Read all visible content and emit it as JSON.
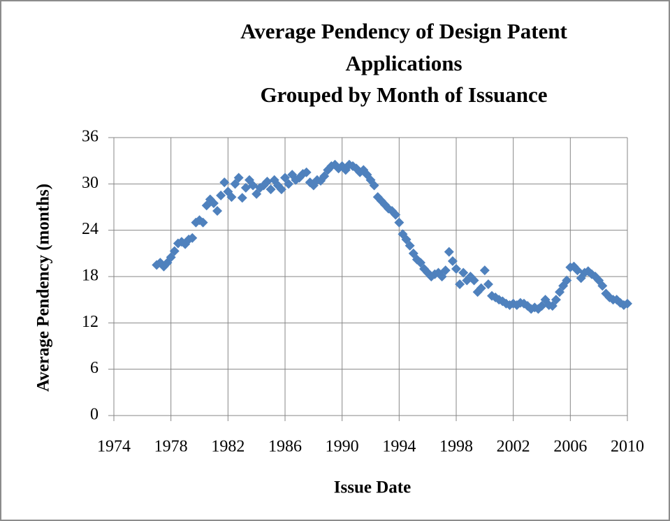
{
  "chart_data": {
    "type": "scatter",
    "title": [
      "Average Pendency of Design Patent",
      "Applications",
      "Grouped by Month of Issuance"
    ],
    "xlabel": "Issue Date",
    "ylabel": "Average Pendency  (months)",
    "color": "#4f81bd",
    "grid": true,
    "xlim": [
      1974,
      2010
    ],
    "xticks": [
      1974,
      1978,
      1982,
      1986,
      1990,
      1994,
      1998,
      2002,
      2006,
      2010
    ],
    "ylim": [
      0,
      36
    ],
    "yticks": [
      0,
      6,
      12,
      18,
      24,
      30,
      36
    ],
    "x": [
      1977.0,
      1977.25,
      1977.5,
      1977.75,
      1978.0,
      1978.25,
      1978.5,
      1978.75,
      1979.0,
      1979.25,
      1979.5,
      1979.75,
      1980.0,
      1980.25,
      1980.5,
      1980.75,
      1981.0,
      1981.25,
      1981.5,
      1981.75,
      1982.0,
      1982.25,
      1982.5,
      1982.75,
      1983.0,
      1983.25,
      1983.5,
      1983.75,
      1984.0,
      1984.25,
      1984.5,
      1984.75,
      1985.0,
      1985.25,
      1985.5,
      1985.75,
      1986.0,
      1986.25,
      1986.5,
      1986.75,
      1987.0,
      1987.25,
      1987.5,
      1987.75,
      1988.0,
      1988.25,
      1988.5,
      1988.75,
      1989.0,
      1989.25,
      1989.5,
      1989.75,
      1990.0,
      1990.25,
      1990.5,
      1990.75,
      1991.0,
      1991.25,
      1991.5,
      1991.75,
      1992.0,
      1992.25,
      1992.5,
      1992.75,
      1993.0,
      1993.25,
      1993.5,
      1993.75,
      1994.0,
      1994.25,
      1994.5,
      1994.75,
      1995.0,
      1995.25,
      1995.5,
      1995.75,
      1996.0,
      1996.25,
      1996.5,
      1996.75,
      1997.0,
      1997.25,
      1997.5,
      1997.75,
      1998.0,
      1998.25,
      1998.5,
      1998.75,
      1999.0,
      1999.25,
      1999.5,
      1999.75,
      2000.0,
      2000.25,
      2000.5,
      2000.75,
      2001.0,
      2001.25,
      2001.5,
      2001.75,
      2002.0,
      2002.25,
      2002.5,
      2002.75,
      2003.0,
      2003.25,
      2003.5,
      2003.75,
      2004.0,
      2004.25,
      2004.5,
      2004.75,
      2005.0,
      2005.25,
      2005.5,
      2005.75,
      2006.0,
      2006.25,
      2006.5,
      2006.75,
      2007.0,
      2007.25,
      2007.5,
      2007.75,
      2008.0,
      2008.25,
      2008.5,
      2008.75,
      2009.0,
      2009.25,
      2009.5,
      2009.75,
      2010.0
    ],
    "values": [
      19.5,
      19.8,
      19.3,
      19.8,
      20.5,
      21.3,
      22.3,
      22.5,
      22.2,
      22.8,
      23.0,
      25.0,
      25.3,
      25.0,
      27.2,
      28.0,
      27.5,
      26.5,
      28.5,
      30.2,
      29.0,
      28.3,
      30.0,
      30.8,
      28.2,
      29.5,
      30.5,
      29.8,
      28.7,
      29.5,
      29.8,
      30.3,
      29.3,
      30.5,
      29.8,
      29.3,
      30.8,
      30.0,
      31.2,
      30.5,
      30.8,
      31.3,
      31.5,
      30.2,
      29.8,
      30.5,
      30.4,
      31.0,
      31.8,
      32.3,
      32.5,
      32.0,
      32.3,
      31.8,
      32.5,
      32.3,
      32.0,
      31.5,
      31.8,
      31.2,
      30.5,
      29.8,
      28.3,
      27.8,
      27.3,
      26.8,
      26.5,
      26.0,
      25.0,
      23.5,
      22.8,
      22.0,
      21.0,
      20.2,
      19.8,
      19.0,
      18.5,
      18.0,
      18.3,
      18.5,
      18.0,
      18.8,
      21.2,
      20.0,
      19.0,
      17.0,
      18.5,
      17.5,
      18.0,
      17.5,
      16.0,
      16.5,
      18.8,
      17.0,
      15.5,
      15.3,
      15.0,
      14.8,
      14.5,
      14.3,
      14.5,
      14.3,
      14.6,
      14.5,
      14.2,
      13.8,
      14.0,
      13.8,
      14.2,
      15.0,
      14.3,
      14.2,
      15.0,
      16.0,
      16.8,
      17.5,
      19.2,
      19.3,
      18.8,
      17.8,
      18.5,
      18.7,
      18.3,
      18.0,
      17.5,
      16.8,
      15.8,
      15.3,
      15.0,
      15.0,
      14.6,
      14.3,
      14.5
    ]
  }
}
